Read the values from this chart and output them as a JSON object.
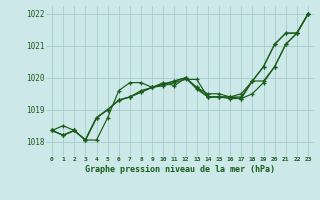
{
  "background_color": "#cce8e8",
  "grid_color": "#aacccc",
  "line_color": "#1a5c1a",
  "xlabel": "Graphe pression niveau de la mer (hPa)",
  "ylabel_ticks": [
    1018,
    1019,
    1020,
    1021,
    1022
  ],
  "xlim": [
    -0.5,
    23.5
  ],
  "ylim": [
    1017.55,
    1022.25
  ],
  "series": [
    [
      1018.35,
      1018.5,
      1018.35,
      1018.05,
      1018.05,
      1018.75,
      1019.6,
      1019.85,
      1019.85,
      1019.7,
      1019.85,
      1019.75,
      1020.0,
      1019.65,
      1019.4,
      1019.4,
      1019.35,
      1019.35,
      1019.9,
      1019.9,
      1020.35,
      1021.05,
      1021.4,
      1022.0
    ],
    [
      1018.35,
      1018.2,
      1018.35,
      1018.05,
      1018.75,
      1019.0,
      1019.3,
      1019.4,
      1019.55,
      1019.7,
      1019.75,
      1019.85,
      1019.95,
      1019.95,
      1019.4,
      1019.4,
      1019.4,
      1019.35,
      1019.5,
      1019.85,
      1020.35,
      1021.05,
      1021.4,
      1022.0
    ],
    [
      1018.35,
      1018.2,
      1018.35,
      1018.05,
      1018.75,
      1019.0,
      1019.3,
      1019.4,
      1019.55,
      1019.7,
      1019.8,
      1019.9,
      1020.0,
      1019.7,
      1019.4,
      1019.4,
      1019.4,
      1019.5,
      1019.9,
      1020.35,
      1021.05,
      1021.4,
      1021.4,
      1022.0
    ],
    [
      1018.35,
      1018.2,
      1018.35,
      1018.05,
      1018.75,
      1019.0,
      1019.3,
      1019.4,
      1019.6,
      1019.7,
      1019.8,
      1019.9,
      1020.0,
      1019.7,
      1019.5,
      1019.5,
      1019.4,
      1019.4,
      1019.9,
      1020.35,
      1021.05,
      1021.4,
      1021.4,
      1022.0
    ]
  ]
}
